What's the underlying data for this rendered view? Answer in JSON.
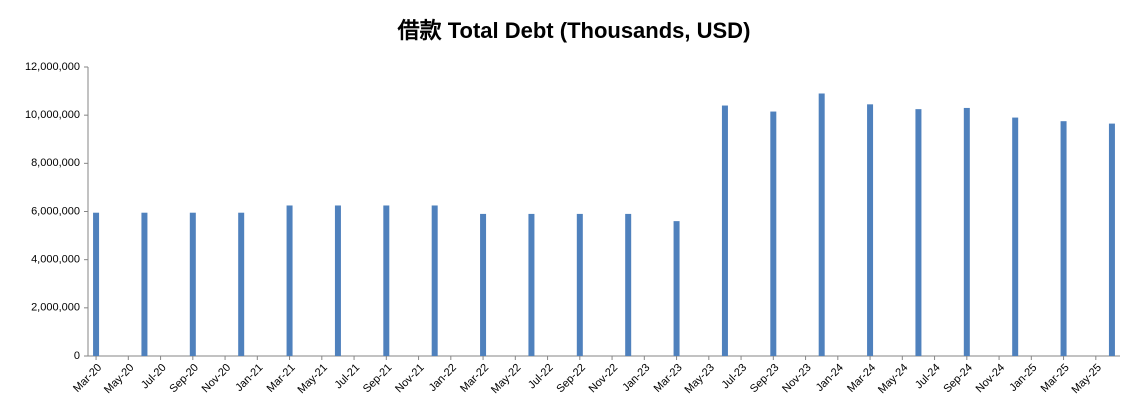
{
  "chart_data": {
    "type": "bar",
    "title": "借款 Total Debt (Thousands, USD)",
    "categories": [
      "Mar-20",
      null,
      "May-20",
      null,
      "Jul-20",
      null,
      "Sep-20",
      null,
      "Nov-20",
      null,
      "Jan-21",
      null,
      "Mar-21",
      null,
      "May-21",
      null,
      "Jul-21",
      null,
      "Sep-21",
      null,
      "Nov-21",
      null,
      "Jan-22",
      null,
      "Mar-22",
      null,
      "May-22",
      null,
      "Jul-22",
      null,
      "Sep-22",
      null,
      "Nov-22",
      null,
      "Jan-23",
      null,
      "Mar-23",
      null,
      "May-23",
      null,
      "Jul-23",
      null,
      "Sep-23",
      null,
      "Nov-23",
      null,
      "Jan-24",
      null,
      "Mar-24",
      null,
      "May-24",
      null,
      "Jul-24",
      null,
      "Sep-24",
      null,
      "Nov-24",
      null,
      "Jan-25",
      null,
      "Mar-25",
      null,
      "May-25",
      null
    ],
    "values": [
      5950000,
      null,
      null,
      5950000,
      null,
      null,
      5950000,
      null,
      null,
      5950000,
      null,
      null,
      6250000,
      null,
      null,
      6250000,
      null,
      null,
      6250000,
      null,
      null,
      6250000,
      null,
      null,
      5900000,
      null,
      null,
      5900000,
      null,
      null,
      5900000,
      null,
      null,
      5900000,
      null,
      null,
      5600000,
      null,
      null,
      10400000,
      null,
      null,
      10150000,
      null,
      null,
      10900000,
      null,
      null,
      10450000,
      null,
      null,
      10250000,
      null,
      null,
      10300000,
      null,
      null,
      9900000,
      null,
      null,
      9750000,
      null,
      null,
      9650000
    ],
    "color": "#4f81bd",
    "ylim": [
      0,
      12000000
    ],
    "yticks": [
      0,
      {
        "value": 2000000,
        "label": "2,000,000"
      },
      {
        "value": 4000000,
        "label": "4,000,000"
      },
      {
        "value": 6000000,
        "label": "6,000,000"
      },
      {
        "value": 8000000,
        "label": "8,000,000"
      },
      {
        "value": 10000000,
        "label": "10,000,000"
      },
      {
        "value": 12000000,
        "label": "12,000,000"
      }
    ],
    "grid": false
  }
}
